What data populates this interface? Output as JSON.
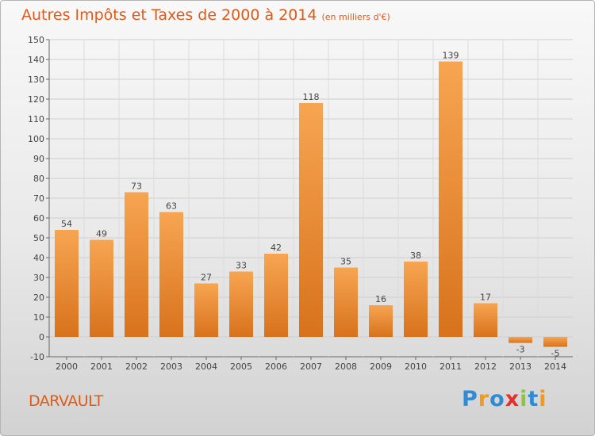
{
  "title": "Autres Impôts et Taxes de 2000 à 2014",
  "unit_label": "(en milliers d'€)",
  "location": "DARVAULT",
  "logo": {
    "text": "Proxiti",
    "letters": [
      {
        "ch": "P",
        "color": "#2e8bd6"
      },
      {
        "ch": "r",
        "color": "#f29a1d"
      },
      {
        "ch": "o",
        "color": "#2e8bd6"
      },
      {
        "ch": "x",
        "color": "#e2312d"
      },
      {
        "ch": "i",
        "color": "#8cc63f"
      },
      {
        "ch": "t",
        "color": "#2e8bd6"
      },
      {
        "ch": "i",
        "color": "#f29a1d"
      }
    ]
  },
  "colors": {
    "title": "#e05a17",
    "bar_light": "#f7a552",
    "bar_dark": "#d8721c"
  },
  "chart_data": {
    "type": "bar",
    "title": "Autres Impôts et Taxes de 2000 à 2014",
    "subtitle": "(en milliers d'€)",
    "categories": [
      "2000",
      "2001",
      "2002",
      "2003",
      "2004",
      "2005",
      "2006",
      "2007",
      "2008",
      "2009",
      "2010",
      "2011",
      "2012",
      "2013",
      "2014"
    ],
    "values": [
      54,
      49,
      73,
      63,
      27,
      33,
      42,
      118,
      35,
      16,
      38,
      139,
      17,
      -3,
      -5
    ],
    "ylim": [
      -10,
      150
    ],
    "yticks": [
      -10,
      0,
      10,
      20,
      30,
      40,
      50,
      60,
      70,
      80,
      90,
      100,
      110,
      120,
      130,
      140,
      150
    ],
    "grid": true,
    "legend": "none"
  }
}
